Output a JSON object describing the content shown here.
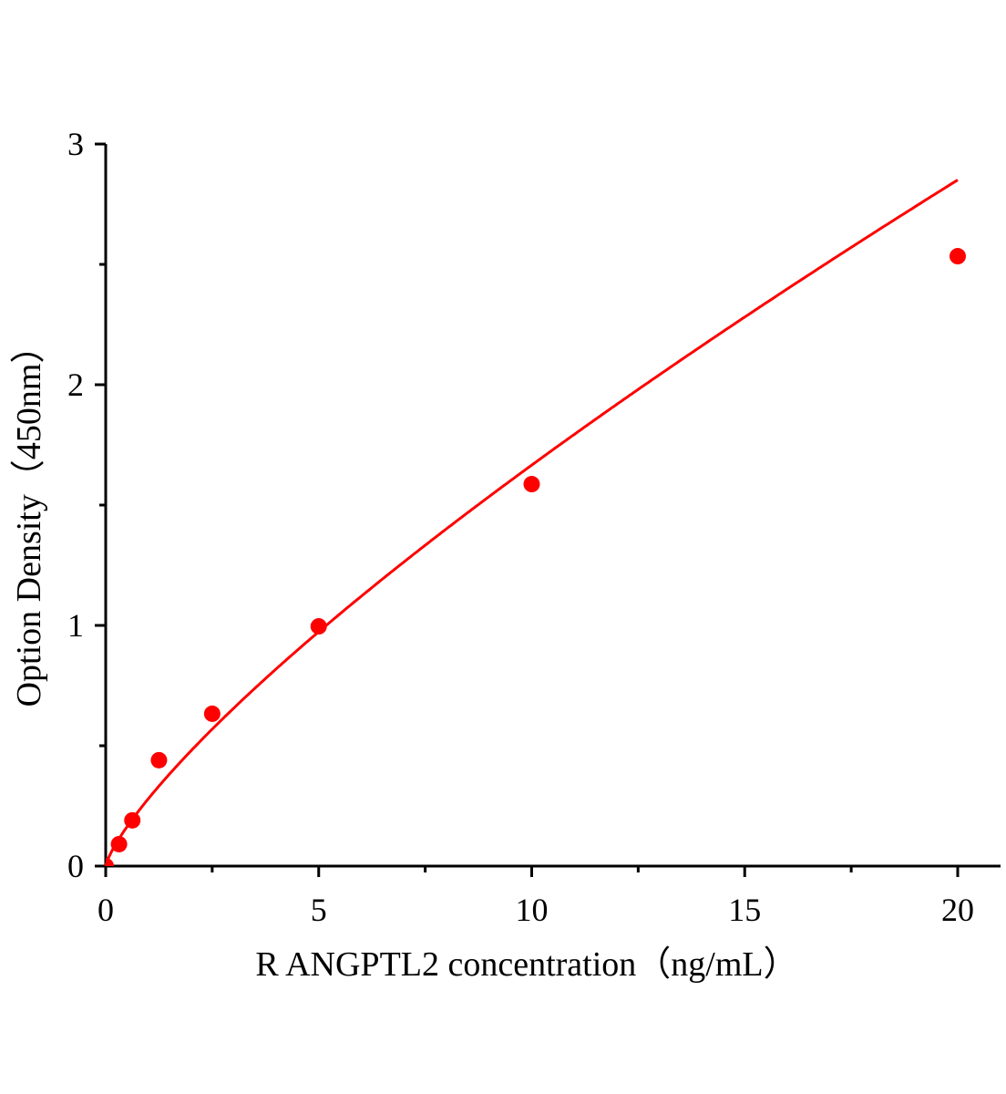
{
  "chart_data": {
    "type": "scatter",
    "title": "",
    "xlabel": "R ANGPTL2 concentration（ng/mL）",
    "ylabel": "Option Density（450nm）",
    "xlim": [
      0,
      21
    ],
    "ylim": [
      0,
      3
    ],
    "x_ticks": [
      0,
      5,
      10,
      15,
      20
    ],
    "x_tick_labels": [
      "0",
      "5",
      "10",
      "15",
      "20"
    ],
    "y_ticks": [
      0,
      1,
      2,
      3
    ],
    "y_tick_labels": [
      "0",
      "1",
      "2",
      "3"
    ],
    "x_minor_step": 2.5,
    "y_minor_step": 0.5,
    "grid": false,
    "legend": "none",
    "series": [
      {
        "x": [
          0,
          0.3125,
          0.625,
          1.25,
          2.5,
          5,
          10,
          20
        ],
        "y": [
          0,
          0.091,
          0.19,
          0.44,
          0.633,
          0.996,
          1.587,
          2.534
        ],
        "marker": "circle",
        "fit_line": "smooth curve",
        "color": "#ff0000"
      }
    ]
  }
}
